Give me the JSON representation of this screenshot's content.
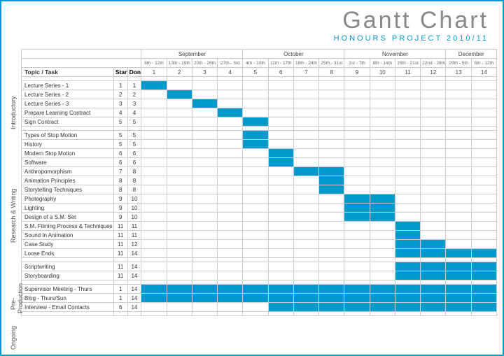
{
  "title": "Gantt Chart",
  "subtitle": "HONOURS PROJECT 2010/11",
  "topic_label": "Topic / Task",
  "start_label": "Start",
  "done_label": "Done",
  "bar_color": "#0099cc",
  "grid_color": "#cccccc",
  "months": [
    {
      "name": "September",
      "span": 4
    },
    {
      "name": "October",
      "span": 4
    },
    {
      "name": "November",
      "span": 4
    },
    {
      "name": "December",
      "span": 2
    }
  ],
  "date_ranges": [
    "6th - 12th",
    "13th - 19th",
    "20th - 26th",
    "27th - 3rd",
    "4th - 10th",
    "11th - 17th",
    "18th - 24th",
    "25th - 31st",
    "1st - 7th",
    "8th - 14th",
    "15th - 21st",
    "22nd - 28th",
    "29th - 5th",
    "6th - 12th"
  ],
  "week_numbers": [
    "1",
    "2",
    "3",
    "4",
    "5",
    "6",
    "7",
    "8",
    "9",
    "10",
    "11",
    "12",
    "13",
    "14"
  ],
  "sections": [
    {
      "name": "Introductory",
      "tasks": [
        {
          "label": "Lecture Series - 1",
          "start": 1,
          "done": 1,
          "bars": [
            [
              1,
              1
            ]
          ]
        },
        {
          "label": "Lecture Series - 2",
          "start": 2,
          "done": 2,
          "bars": [
            [
              2,
              2
            ]
          ]
        },
        {
          "label": "Lecture Series - 3",
          "start": 3,
          "done": 3,
          "bars": [
            [
              3,
              3
            ]
          ]
        },
        {
          "label": "Prepare Learning Contract",
          "start": 4,
          "done": 4,
          "bars": [
            [
              4,
              4
            ]
          ]
        },
        {
          "label": "Sign Contract",
          "start": 5,
          "done": 5,
          "bars": [
            [
              5,
              5
            ]
          ]
        }
      ]
    },
    {
      "name": "Research & Writing",
      "tasks": [
        {
          "label": "Types of Stop Motion",
          "start": 5,
          "done": 5,
          "bars": [
            [
              5,
              5
            ]
          ]
        },
        {
          "label": "History",
          "start": 5,
          "done": 5,
          "bars": [
            [
              5,
              5
            ]
          ]
        },
        {
          "label": "Modern Stop Motion",
          "start": 6,
          "done": 6,
          "bars": [
            [
              6,
              6
            ]
          ]
        },
        {
          "label": "Software",
          "start": 6,
          "done": 6,
          "bars": [
            [
              6,
              6
            ]
          ]
        },
        {
          "label": "Anthropomorphism",
          "start": 7,
          "done": 8,
          "bars": [
            [
              7,
              8
            ]
          ]
        },
        {
          "label": "Animation Principles",
          "start": 8,
          "done": 8,
          "bars": [
            [
              8,
              8
            ]
          ]
        },
        {
          "label": "Storytelling Techniques",
          "start": 8,
          "done": 8,
          "bars": [
            [
              8,
              8
            ]
          ]
        },
        {
          "label": "Photography",
          "start": 9,
          "done": 10,
          "bars": [
            [
              9,
              10
            ]
          ]
        },
        {
          "label": "Lighting",
          "start": 9,
          "done": 10,
          "bars": [
            [
              9,
              10
            ]
          ]
        },
        {
          "label": "Design of a S.M. Set",
          "start": 9,
          "done": 10,
          "bars": [
            [
              9,
              10
            ]
          ]
        },
        {
          "label": "S.M. Filming Process & Techniques",
          "start": 11,
          "done": 11,
          "bars": [
            [
              11,
              11
            ]
          ]
        },
        {
          "label": "Sound In Animation",
          "start": 11,
          "done": 11,
          "bars": [
            [
              11,
              11
            ]
          ]
        },
        {
          "label": "Case Study",
          "start": 11,
          "done": 12,
          "bars": [
            [
              11,
              12
            ]
          ]
        },
        {
          "label": "Loose Ends",
          "start": 11,
          "done": 14,
          "bars": [
            [
              11,
              14
            ]
          ]
        }
      ]
    },
    {
      "name": "Pre-Production",
      "tasks": [
        {
          "label": "Scriptwriting",
          "start": 11,
          "done": 14,
          "bars": [
            [
              11,
              14
            ]
          ]
        },
        {
          "label": "Storyboarding",
          "start": 11,
          "done": 14,
          "bars": [
            [
              11,
              14
            ]
          ]
        }
      ]
    },
    {
      "name": "Ongoing",
      "tasks": [
        {
          "label": "Supervisor Meeting - Thurs",
          "start": 1,
          "done": 14,
          "bars": [
            [
              1,
              14
            ]
          ]
        },
        {
          "label": "Blog - Thurs/Sun",
          "start": 1,
          "done": 14,
          "bars": [
            [
              1,
              14
            ]
          ]
        },
        {
          "label": "Interview - Email Contacts",
          "start": 6,
          "done": 14,
          "bars": [
            [
              6,
              14
            ]
          ]
        }
      ]
    }
  ]
}
